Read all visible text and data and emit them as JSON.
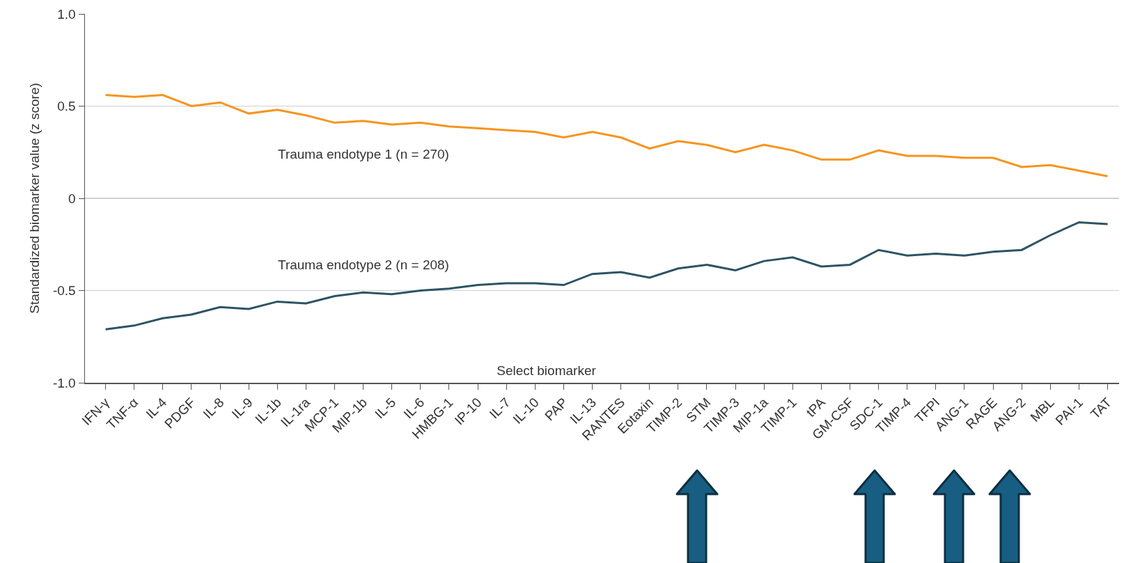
{
  "chart_data": {
    "type": "line",
    "xlabel": "Select biomarker",
    "ylabel": "Standardized biomarker value (z score)",
    "categories": [
      "IFN-γ",
      "TNF-α",
      "IL-4",
      "PDGF",
      "IL-8",
      "IL-9",
      "IL-1b",
      "IL-1ra",
      "MCP-1",
      "MIP-1b",
      "IL-5",
      "IL-6",
      "HMBG-1",
      "IP-10",
      "IL-7",
      "IL-10",
      "PAP",
      "IL-13",
      "RANTES",
      "Eotaxin",
      "TIMP-2",
      "STM",
      "TIMP-3",
      "MIP-1a",
      "TIMP-1",
      "tPA",
      "GM-CSF",
      "SDC-1",
      "TIMP-4",
      "TFPI",
      "ANG-1",
      "RAGE",
      "ANG-2",
      "MBL",
      "PAI-1",
      "TAT"
    ],
    "series": [
      {
        "name": "Trauma endotype 1 (n = 270)",
        "color": "#f7941d",
        "values": [
          0.56,
          0.55,
          0.56,
          0.5,
          0.52,
          0.46,
          0.48,
          0.45,
          0.41,
          0.42,
          0.4,
          0.41,
          0.39,
          0.38,
          0.37,
          0.36,
          0.33,
          0.36,
          0.33,
          0.27,
          0.31,
          0.29,
          0.25,
          0.29,
          0.26,
          0.21,
          0.21,
          0.26,
          0.23,
          0.23,
          0.22,
          0.22,
          0.17,
          0.18,
          0.15,
          0.12
        ]
      },
      {
        "name": "Trauma endotype 2 (n = 208)",
        "color": "#2d5463",
        "values": [
          -0.71,
          -0.69,
          -0.65,
          -0.63,
          -0.59,
          -0.6,
          -0.56,
          -0.57,
          -0.53,
          -0.51,
          -0.52,
          -0.5,
          -0.49,
          -0.47,
          -0.46,
          -0.46,
          -0.47,
          -0.41,
          -0.4,
          -0.43,
          -0.38,
          -0.36,
          -0.39,
          -0.34,
          -0.32,
          -0.37,
          -0.36,
          -0.28,
          -0.31,
          -0.3,
          -0.31,
          -0.29,
          -0.28,
          -0.2,
          -0.13,
          -0.14
        ]
      }
    ],
    "ylim": [
      -1,
      1
    ],
    "yticks": [
      {
        "value": 1,
        "label": "1.0"
      },
      0.5,
      0,
      -0.5,
      {
        "value": -1,
        "label": "-1.0"
      }
    ],
    "grid": "y",
    "legend": false,
    "marker": "none",
    "line_style": "solid"
  }
}
